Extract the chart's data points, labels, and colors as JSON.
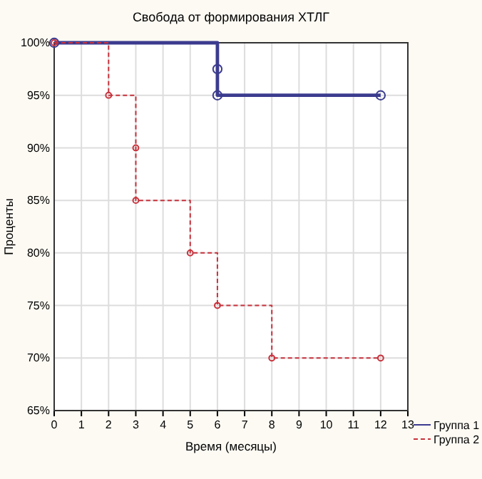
{
  "chart_data": {
    "type": "step",
    "title": "Свобода от формирования ХТЛГ",
    "xlabel": "Время (месяцы)",
    "ylabel": "Проценты",
    "xlim": [
      0,
      13
    ],
    "xticks": [
      0,
      1,
      2,
      3,
      4,
      5,
      6,
      7,
      8,
      9,
      10,
      11,
      12,
      13
    ],
    "ylim": [
      65,
      100
    ],
    "yticks": [
      {
        "value": 65,
        "label": "65%"
      },
      {
        "value": 70,
        "label": "70%"
      },
      {
        "value": 75,
        "label": "75%"
      },
      {
        "value": 80,
        "label": "80%"
      },
      {
        "value": 85,
        "label": "85%"
      },
      {
        "value": 90,
        "label": "90%"
      },
      {
        "value": 95,
        "label": "95%"
      },
      {
        "value": 100,
        "label": "100%"
      }
    ],
    "grid": true,
    "legend": "bottom right",
    "marker": "circle",
    "series": [
      {
        "name": "Группа 1",
        "color": "#3b3b8f",
        "line_style": "solid",
        "x": [
          0,
          6,
          6,
          12
        ],
        "values": [
          100,
          97.5,
          95,
          95
        ]
      },
      {
        "name": "Группа 2",
        "color": "#c8323c",
        "line_style": "dashed",
        "x": [
          0,
          2,
          3,
          3,
          5,
          6,
          8,
          12
        ],
        "values": [
          100,
          95,
          90,
          85,
          80,
          75,
          70,
          70
        ]
      }
    ]
  }
}
